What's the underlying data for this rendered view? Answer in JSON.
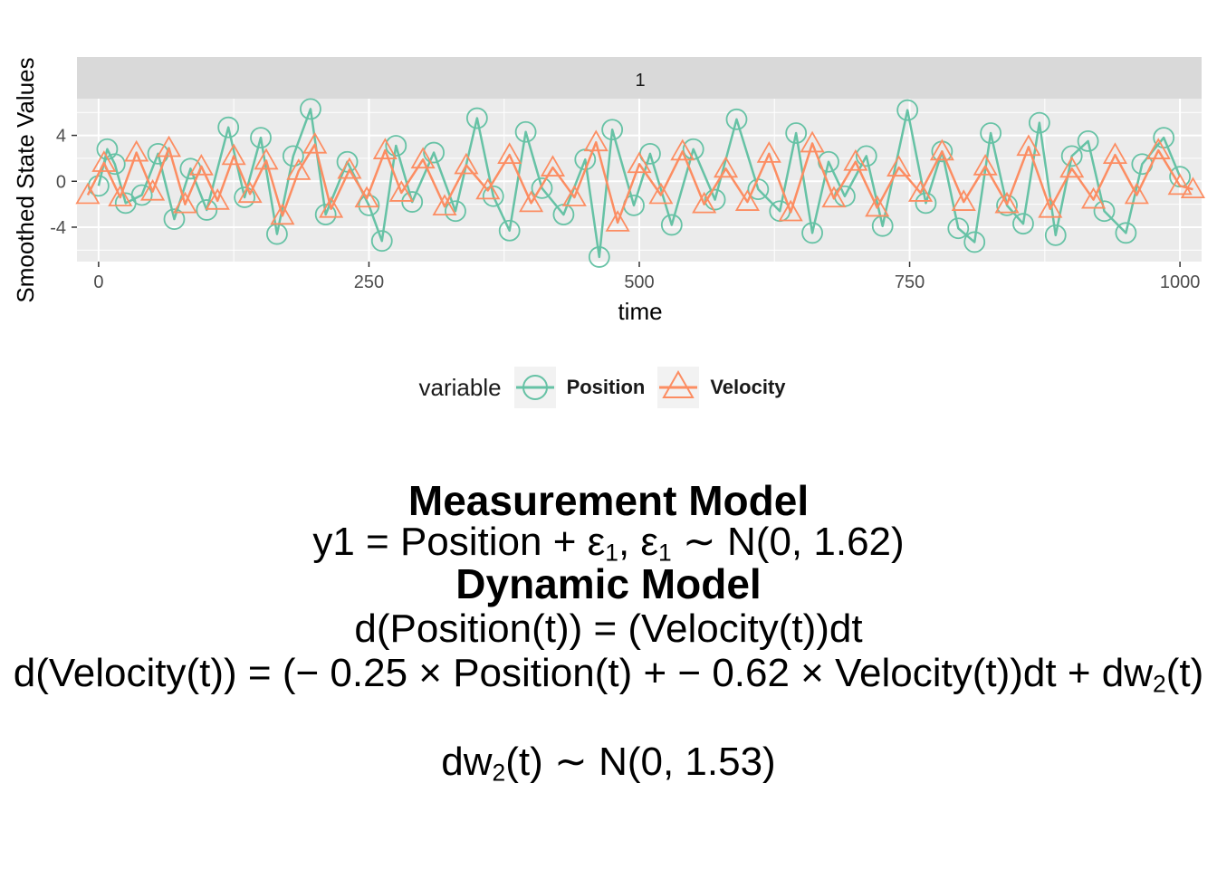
{
  "chart_data": {
    "type": "scatter",
    "panel_strip": "1",
    "xlabel": "time",
    "ylabel": "Smoothed State Values",
    "xlim": [
      -20,
      1020
    ],
    "ylim": [
      -7,
      7.2
    ],
    "x_ticks": [
      0,
      250,
      500,
      750,
      1000
    ],
    "y_ticks": [
      -4,
      0,
      4
    ],
    "grid": true,
    "legend": {
      "title": "variable",
      "placement": "bottom"
    },
    "series": [
      {
        "name": "Position",
        "marker": "circle",
        "color": "#66c2a5",
        "x": [
          0,
          8,
          15,
          25,
          40,
          55,
          70,
          85,
          100,
          120,
          135,
          150,
          165,
          180,
          196,
          210,
          230,
          250,
          262,
          275,
          290,
          310,
          330,
          350,
          365,
          380,
          395,
          410,
          430,
          450,
          463,
          475,
          495,
          510,
          530,
          550,
          570,
          590,
          610,
          630,
          645,
          660,
          675,
          690,
          710,
          725,
          748,
          765,
          780,
          795,
          810,
          825,
          840,
          855,
          870,
          885,
          900,
          915,
          930,
          950,
          965,
          985,
          1000
        ],
        "y": [
          -0.4,
          2.8,
          1.5,
          -1.9,
          -1.2,
          2.4,
          -3.3,
          1.1,
          -2.5,
          4.7,
          -1.4,
          3.8,
          -4.6,
          2.2,
          6.3,
          -2.9,
          1.7,
          -2.1,
          -5.2,
          3.1,
          -1.8,
          2.5,
          -2.6,
          5.5,
          -1.3,
          -4.3,
          4.3,
          -0.6,
          -2.9,
          1.9,
          -6.6,
          4.5,
          -2.1,
          2.4,
          -3.8,
          2.8,
          -1.6,
          5.4,
          -0.7,
          -2.6,
          4.2,
          -4.5,
          1.7,
          -1.3,
          2.2,
          -3.9,
          6.2,
          -1.9,
          2.6,
          -4.1,
          -5.3,
          4.2,
          -2.1,
          -3.7,
          5.1,
          -4.7,
          2.2,
          3.5,
          -2.6,
          -4.5,
          1.5,
          3.8,
          0.4
        ]
      },
      {
        "name": "Velocity",
        "marker": "triangle",
        "color": "#fc8d62",
        "x": [
          -10,
          5,
          20,
          35,
          50,
          65,
          80,
          95,
          110,
          125,
          140,
          155,
          170,
          185,
          200,
          215,
          232,
          248,
          265,
          280,
          300,
          320,
          340,
          360,
          380,
          400,
          420,
          440,
          460,
          480,
          500,
          520,
          540,
          560,
          580,
          600,
          620,
          640,
          660,
          680,
          700,
          720,
          740,
          760,
          780,
          800,
          820,
          840,
          860,
          880,
          900,
          920,
          940,
          960,
          980,
          1000,
          1012
        ],
        "y": [
          -1.2,
          1.6,
          -1.4,
          2.5,
          -0.9,
          2.9,
          -2.0,
          1.3,
          -1.7,
          2.2,
          -1.1,
          1.8,
          -3.0,
          0.9,
          3.2,
          -2.4,
          1.0,
          -1.5,
          2.7,
          -1.0,
          1.9,
          -2.2,
          1.4,
          -0.8,
          2.3,
          -1.9,
          1.2,
          -1.4,
          3.4,
          -3.6,
          1.5,
          -1.2,
          2.6,
          -2.0,
          1.1,
          -1.8,
          2.4,
          -2.7,
          3.3,
          -1.5,
          1.7,
          -2.3,
          1.2,
          -1.0,
          2.6,
          -1.8,
          1.3,
          -2.0,
          3.0,
          -2.4,
          1.1,
          -1.6,
          2.3,
          -1.2,
          2.7,
          -0.4,
          -0.7
        ]
      }
    ]
  },
  "legend": {
    "title": "variable",
    "items": [
      {
        "label": "Position"
      },
      {
        "label": "Velocity"
      }
    ]
  },
  "colors": {
    "position": "#66c2a5",
    "velocity": "#fc8d62",
    "panel": "#ebebeb",
    "strip": "#d9d9d9"
  },
  "equations": {
    "measurement_heading": "Measurement Model",
    "measurement": {
      "lhs": "y1 = Position + ε",
      "sub1": "1",
      "mid": ",    ε",
      "sub2": "1",
      "rhs": " ∼ N(0,  1.62)"
    },
    "dynamic_heading": "Dynamic Model",
    "dyn1": "d(Position(t)) = (Velocity(t))dt",
    "dyn2": {
      "lhs": "d(Velocity(t)) = (− 0.25 × Position(t) +  − 0.62 × Velocity(t))dt + dw",
      "sub": "2",
      "rhs": "(t)"
    },
    "noise": {
      "lhs": "dw",
      "sub": "2",
      "rhs": "(t) ∼ N(0,  1.53)"
    }
  }
}
